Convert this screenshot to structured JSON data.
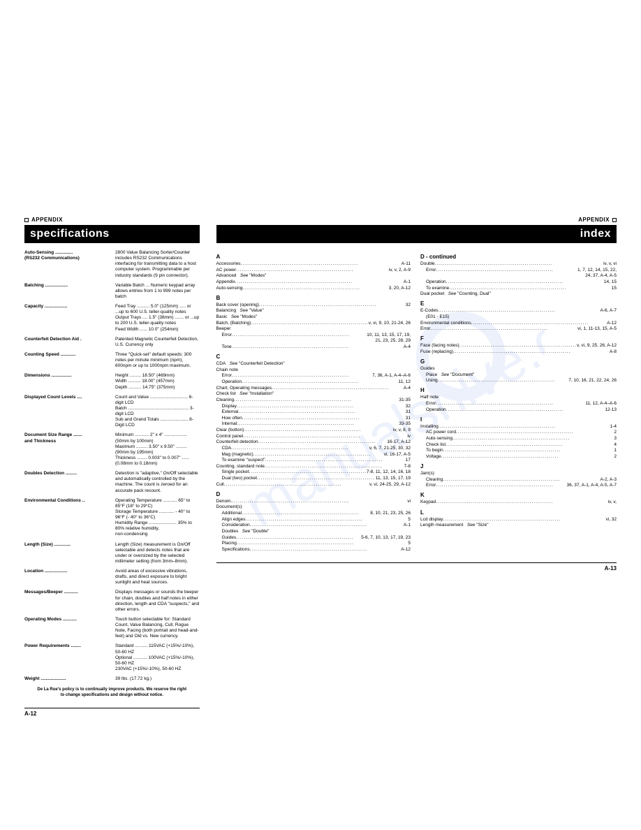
{
  "colors": {
    "watermark": "#8aa9f0",
    "text": "#000000",
    "titleBg": "#000000",
    "titleFg": "#ffffff"
  },
  "leftPage": {
    "appendixLabel": "APPENDIX",
    "title": "specifications",
    "pageNum": "A-12",
    "specs": [
      {
        "label": "Auto-Sensing\n(RS232 Communications)",
        "value": "2800 Value Balancing Sorter/Counter includes RS232 Communications interfacing for transmitting data to a host computer system. Programmable per industry standards (9 pin connector)."
      },
      {
        "label": "Batching",
        "value": "Variable Batch ... Numeric keypad array allows entries from 1 to 999 notes per batch"
      },
      {
        "label": "Capacity",
        "value": "Feed Tray .......... 5.0\"  (125mm) ..... or ...up to 600 U.S. teller-quality notes\nOutput Trays .... 1.5\"  (38mm) ....... or ...up to 200 U.S. teller-quality notes\nFeed Width ...... 10.0\" (254mm)"
      },
      {
        "label": "Counterfeit Detection Aid",
        "value": "Patented Magnetic Counterfeit Detection,  U.S. Currency only"
      },
      {
        "label": "Counting Speed",
        "value": "Three \"Quick-set\" default speeds:  300 notes per minute minimum (npm), 600npm or up to 1000npm maximum."
      },
      {
        "label": "Dimensions",
        "value": "Height ......... 18.50\" (469mm)\nWidth .......... 18.00\" (457mm)\nDepth .......... 14.75\" (375mm)"
      },
      {
        "label": "Displayed Count Levels",
        "value": "Count and Value .............................. 6-digit LCD\nBatch ................................................ 3-digit LCD\nSub and Grand Totals ...................... 8-Digit LCD"
      },
      {
        "label": "Document Size Range\nand Thickness",
        "value": "Minimum ........... 2\"  x  4\" .................. (50mm by 100mm)\nMaximum ......... 3.50\"  x  9.50\" ......... (90mm by 195mm)\nThickness ........ 0.003\" to 0.007\" ...... (0.08mm to 0.18mm)"
      },
      {
        "label": "Doubles Detection",
        "value": "Detection is \"adaptive,\" On/Off selectable and automatically controlled by the machine. The count is zeroed for an accurate pack recount."
      },
      {
        "label": "Environmental Conditions",
        "value": "Operating Temperature ........... 65° to 85°F (18° to 29°C)\nStorage Temperature ............ - 40° to 96°F (- 40° to 36°C)\nHumidity Range ...................... 35% to 80% relative humidity,\n                                                non-condensing"
      },
      {
        "label": "Length (Size)",
        "value": "Length (Size) measurement is On/Off selectable and detects notes that are under or oversized by the selected millimeter setting (from 3mm–8mm)."
      },
      {
        "label": "Location",
        "value": "Avoid areas of excessive vibrations, drafts, and direct exposure to bright sunlight and heat sources."
      },
      {
        "label": "Messages/Beeper",
        "value": "Displays messages or sounds the beeper for chain, doubles and half notes in either direction, length and CDA \"suspects,\" and other errors."
      },
      {
        "label": "Operating Modes",
        "value": "Touch button selectable for:  Standard Count, Value Balancing, Cull, Rogue Note, Facing (both portrait and head-and-feet) and Old vs. New currency."
      },
      {
        "label": "Power Requirements",
        "value": "Standard .......... 115VAC (+15%/-10%), 50-60 HZ\nOptional ........... 100VAC (+15%/-10%), 50-60 HZ\n                         230VAC (+15%/-10%), 50-60 HZ"
      },
      {
        "label": "Weight",
        "value": "39 lbs. (17.72 kg.)"
      }
    ],
    "footnote": "De La Rue's policy is to continually improve products.  We reserve the right\nto change specifications and design without notice."
  },
  "rightPage": {
    "appendixLabel": "APPENDIX",
    "title": "index",
    "pageNum": "A-13",
    "col1": [
      {
        "letter": "A"
      },
      {
        "t": "Accessories",
        "p": "A-11"
      },
      {
        "t": "AC power",
        "p": "iv, v, 2, A-9"
      },
      {
        "t": "Advanced",
        "see": "See \"Modes\""
      },
      {
        "t": "Appendix",
        "p": "A-1"
      },
      {
        "t": "Auto-sensing",
        "p": "3, 20, A-12"
      },
      {
        "letter": "B"
      },
      {
        "t": "Back cover (opening)",
        "p": "32"
      },
      {
        "t": "Balancing",
        "see": "See \"Value\""
      },
      {
        "t": "Basic",
        "see": "See \"Modes\""
      },
      {
        "t": "Batch, (Batching)",
        "p": "v, vi, 9, 10, 21-24, 26"
      },
      {
        "t": "Beeper"
      },
      {
        "t": "Error",
        "sub": 1,
        "p": "10, 11, 13, 15, 17, 19,"
      },
      {
        "t": "",
        "sub": 1,
        "p": "21, 23, 25, 28, 29"
      },
      {
        "t": "Tone",
        "sub": 1,
        "p": "A-4"
      },
      {
        "letter": "C"
      },
      {
        "t": "CDA",
        "see": "See \"Counterfeit Detection\""
      },
      {
        "t": "Chain note"
      },
      {
        "t": "Error",
        "sub": 1,
        "p": "7, 36, A-1, A-4–A-6"
      },
      {
        "t": "Operation",
        "sub": 1,
        "p": "11, 12"
      },
      {
        "t": "Chart, Operating messages",
        "p": "A-4"
      },
      {
        "t": "Check list",
        "see": "See \"Installation\""
      },
      {
        "t": "Cleaning",
        "p": "31-35"
      },
      {
        "t": "Display",
        "sub": 1,
        "p": "32"
      },
      {
        "t": "External",
        "sub": 1,
        "p": "31"
      },
      {
        "t": "How often",
        "sub": 1,
        "p": "31"
      },
      {
        "t": "Internal",
        "sub": 1,
        "p": "33-35"
      },
      {
        "t": "Clear (button)",
        "p": "iv, v, 8, 9"
      },
      {
        "t": "Control panel",
        "p": "iv"
      },
      {
        "t": "Counterfeit detection",
        "p": "16-17, A-12"
      },
      {
        "t": "CDA",
        "sub": 1,
        "p": "v, 6, 7, 21-25, 30, 32"
      },
      {
        "t": "Mag (magnetic)",
        "sub": 1,
        "p": "vi, 16-17, A-5"
      },
      {
        "t": "To examine \"suspect\"",
        "sub": 1,
        "p": "17"
      },
      {
        "t": "Counting, standard note",
        "p": "7-8"
      },
      {
        "t": "Single pocket",
        "sub": 1,
        "p": "7-8, 11, 12, 14, 16, 18"
      },
      {
        "t": "Dual (two) pocket",
        "sub": 1,
        "p": "11, 13, 15, 17, 19"
      },
      {
        "t": "Cull",
        "p": "v, vi, 24-25, 29, A-12"
      },
      {
        "letter": "D"
      },
      {
        "t": "Denom.",
        "p": "vi"
      },
      {
        "t": "Document(s)"
      },
      {
        "t": "Additional",
        "sub": 1,
        "p": "8, 10, 21, 23, 25, 26"
      },
      {
        "t": "Align edges",
        "sub": 1,
        "p": "5"
      },
      {
        "t": "Consideration",
        "sub": 1,
        "p": "A-1"
      },
      {
        "t": "Doubles",
        "sub": 1,
        "see": "See \"Double\""
      },
      {
        "t": "Guides",
        "sub": 1,
        "p": "5-6, 7, 10, 13, 17, 19, 23"
      },
      {
        "t": "Placing",
        "sub": 1,
        "p": "5"
      },
      {
        "t": "Specifications",
        "sub": 1,
        "p": "A-12"
      }
    ],
    "col2": [
      {
        "header": "D - continued"
      },
      {
        "t": "Double",
        "p": "iv, v, vi"
      },
      {
        "t": "Error",
        "sub": 1,
        "p": "1, 7, 12, 14, 15, 22,"
      },
      {
        "t": "",
        "sub": 1,
        "p": "24, 37, A-4, A-5"
      },
      {
        "t": "Operation",
        "sub": 1,
        "p": "14, 15"
      },
      {
        "t": "To examine",
        "sub": 1,
        "p": "15"
      },
      {
        "t": "Dual pocket",
        "see": "See \"Counting, Dual\""
      },
      {
        "letter": "E"
      },
      {
        "t": "E-Codes",
        "p": "A-6,  A-7"
      },
      {
        "t": "(E01 - E15)",
        "sub": 1
      },
      {
        "t": "Environmental conditions",
        "p": "A-12"
      },
      {
        "t": "Error",
        "p": "vi, 1, 11-13, 15, A-5"
      },
      {
        "letter": "F"
      },
      {
        "t": "Face (facing notes)",
        "p": "v, vi, 9, 25, 26, A-12"
      },
      {
        "t": "Fuse (replacing)",
        "p": "A-8"
      },
      {
        "letter": "G"
      },
      {
        "t": "Guides"
      },
      {
        "t": "Place",
        "sub": 1,
        "see": "See \"Document\""
      },
      {
        "t": "Using",
        "sub": 1,
        "p": "7, 10, 16, 21, 22, 24, 26"
      },
      {
        "letter": "H"
      },
      {
        "t": "Half note"
      },
      {
        "t": "Error",
        "sub": 1,
        "p": "11, 12, A-4–A-6"
      },
      {
        "t": "Operation",
        "sub": 1,
        "p": "12-13"
      },
      {
        "letter": "I"
      },
      {
        "t": "Installing",
        "p": "1-4"
      },
      {
        "t": "AC power cord",
        "sub": 1,
        "p": "2"
      },
      {
        "t": "Auto-sensing",
        "sub": 1,
        "p": "3"
      },
      {
        "t": "Check list",
        "sub": 1,
        "p": "4"
      },
      {
        "t": "To begin",
        "sub": 1,
        "p": "1"
      },
      {
        "t": "Voltage",
        "sub": 1,
        "p": "2"
      },
      {
        "letter": "J"
      },
      {
        "t": "Jam(s)"
      },
      {
        "t": "Clearing",
        "sub": 1,
        "p": "A-2,  A-3"
      },
      {
        "t": "Error",
        "sub": 1,
        "p": "36, 37, A-1, A-4, A-5, A-7"
      },
      {
        "letter": "K"
      },
      {
        "t": "Keypad",
        "p": "iv, v,"
      },
      {
        "letter": "L"
      },
      {
        "t": "Lcd display",
        "p": "vi, 32"
      },
      {
        "t": "Length measurement",
        "see": "See \"Size\""
      }
    ]
  }
}
